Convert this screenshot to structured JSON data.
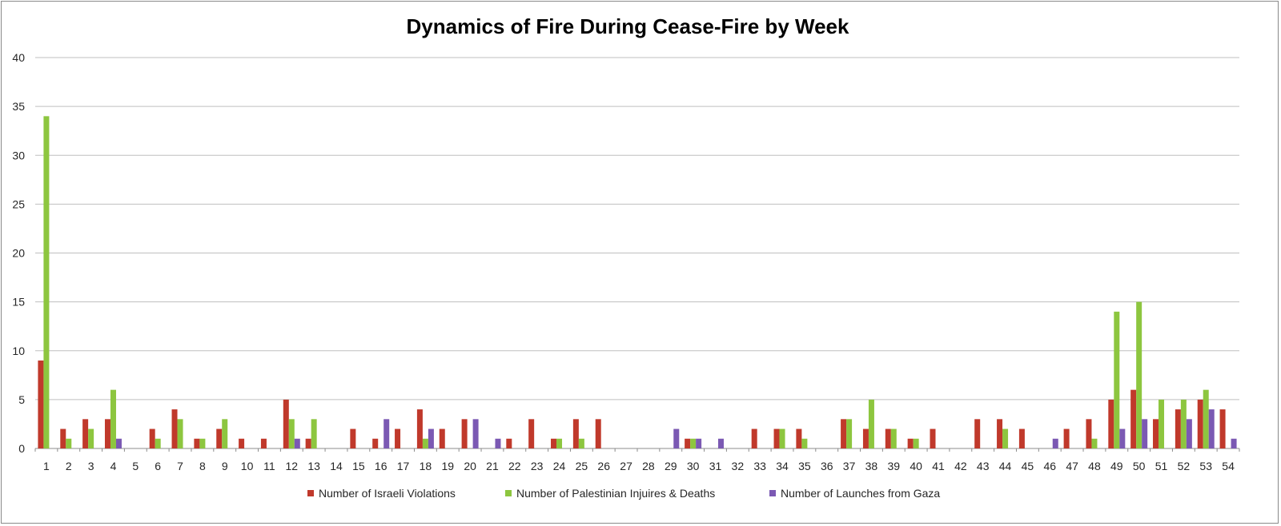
{
  "chart_data": {
    "type": "bar",
    "title": "Dynamics of Fire During Cease-Fire by Week",
    "xlabel": "",
    "ylabel": "",
    "ylim": [
      0,
      40
    ],
    "yticks": [
      0,
      5,
      10,
      15,
      20,
      25,
      30,
      35,
      40
    ],
    "grid": true,
    "legend_position": "bottom",
    "categories": [
      "1",
      "2",
      "3",
      "4",
      "5",
      "6",
      "7",
      "8",
      "9",
      "10",
      "11",
      "12",
      "13",
      "14",
      "15",
      "16",
      "17",
      "18",
      "19",
      "20",
      "21",
      "22",
      "23",
      "24",
      "25",
      "26",
      "27",
      "28",
      "29",
      "30",
      "31",
      "32",
      "33",
      "34",
      "35",
      "36",
      "37",
      "38",
      "39",
      "40",
      "41",
      "42",
      "43",
      "44",
      "45",
      "46",
      "47",
      "48",
      "49",
      "50",
      "51",
      "52",
      "53",
      "54"
    ],
    "series": [
      {
        "name": "Number of Israeli Violations",
        "color": "#c0392b",
        "values": [
          9,
          2,
          3,
          3,
          0,
          2,
          4,
          1,
          2,
          1,
          1,
          5,
          1,
          0,
          2,
          1,
          2,
          4,
          2,
          3,
          0,
          1,
          3,
          1,
          3,
          3,
          0,
          0,
          0,
          1,
          0,
          0,
          2,
          2,
          2,
          0,
          3,
          2,
          2,
          1,
          2,
          0,
          3,
          3,
          2,
          0,
          2,
          3,
          5,
          6,
          3,
          4,
          5,
          4
        ]
      },
      {
        "name": "Number of Palestinian Injuires & Deaths",
        "color": "#8dc63f",
        "values": [
          34,
          1,
          2,
          6,
          0,
          1,
          3,
          1,
          3,
          0,
          0,
          3,
          3,
          0,
          0,
          0,
          0,
          1,
          0,
          0,
          0,
          0,
          0,
          1,
          1,
          0,
          0,
          0,
          0,
          1,
          0,
          0,
          0,
          2,
          1,
          0,
          3,
          5,
          2,
          1,
          0,
          0,
          0,
          2,
          0,
          0,
          0,
          1,
          14,
          15,
          5,
          5,
          6,
          0
        ]
      },
      {
        "name": "Number of Launches from Gaza",
        "color": "#7b59b3",
        "values": [
          0,
          0,
          0,
          1,
          0,
          0,
          0,
          0,
          0,
          0,
          0,
          1,
          0,
          0,
          0,
          3,
          0,
          2,
          0,
          3,
          1,
          0,
          0,
          0,
          0,
          0,
          0,
          0,
          2,
          1,
          1,
          0,
          0,
          0,
          0,
          0,
          0,
          0,
          0,
          0,
          0,
          0,
          0,
          0,
          0,
          1,
          0,
          0,
          2,
          3,
          0,
          3,
          4,
          1
        ]
      }
    ]
  }
}
